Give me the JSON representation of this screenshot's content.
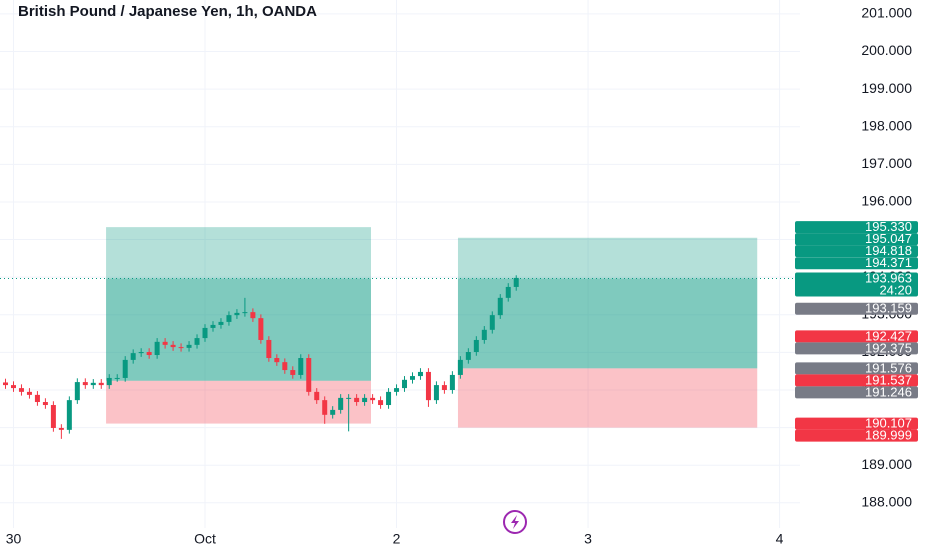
{
  "chart_data": {
    "type": "candlestick",
    "title": "British Pound / Japanese Yen, 1h, OANDA",
    "x": [
      -25,
      -24,
      -23,
      -22,
      -21,
      -20,
      -19,
      -18,
      -17,
      -16,
      -15,
      -14,
      -13,
      -12,
      -11,
      -10,
      -9,
      -8,
      -7,
      -6,
      -5,
      -4,
      -3,
      -2,
      -1,
      0,
      1,
      2,
      3,
      4,
      5,
      6,
      7,
      8,
      9,
      10,
      11,
      12,
      13,
      14,
      15,
      16,
      17,
      18,
      19,
      20,
      21,
      22,
      23,
      24,
      25,
      26,
      27,
      28,
      29,
      30,
      31,
      32,
      33,
      34,
      35,
      36,
      37,
      38,
      39
    ],
    "open": [
      191.2,
      191.13,
      191.05,
      190.95,
      190.87,
      190.68,
      190.6,
      189.99,
      189.94,
      190.73,
      191.21,
      191.13,
      191.19,
      191.13,
      191.32,
      191.32,
      191.8,
      191.98,
      192.01,
      191.93,
      192.28,
      192.2,
      192.14,
      192.12,
      192.2,
      192.38,
      192.65,
      192.73,
      192.81,
      192.99,
      193.05,
      193.07,
      192.91,
      192.33,
      191.85,
      191.74,
      191.53,
      191.4,
      191.85,
      190.95,
      190.73,
      190.34,
      190.47,
      190.79,
      190.79,
      190.68,
      190.79,
      190.73,
      190.6,
      190.95,
      191.05,
      191.27,
      191.37,
      191.48,
      190.73,
      191.13,
      191.0,
      191.4,
      191.8,
      192.01,
      192.33,
      192.6,
      192.99,
      193.45,
      193.74
    ],
    "high": [
      191.3,
      191.23,
      191.15,
      191.05,
      190.97,
      190.78,
      190.7,
      190.09,
      190.83,
      191.31,
      191.31,
      191.29,
      191.29,
      191.42,
      191.42,
      191.9,
      192.08,
      192.11,
      192.11,
      192.38,
      192.38,
      192.3,
      192.24,
      192.3,
      192.48,
      192.75,
      192.83,
      192.91,
      193.09,
      193.15,
      193.45,
      193.17,
      193.01,
      192.43,
      191.95,
      191.84,
      191.63,
      191.95,
      191.95,
      191.05,
      190.83,
      190.57,
      190.89,
      190.89,
      190.89,
      190.89,
      190.89,
      190.83,
      191.05,
      191.15,
      191.37,
      191.47,
      191.58,
      191.58,
      191.23,
      191.23,
      191.5,
      191.9,
      192.11,
      192.43,
      192.7,
      193.09,
      193.55,
      193.84,
      194.05
    ],
    "low": [
      191.03,
      190.95,
      190.85,
      190.77,
      190.58,
      190.5,
      189.89,
      189.7,
      189.84,
      190.63,
      191.03,
      191.03,
      191.03,
      191.03,
      191.22,
      191.22,
      191.7,
      191.88,
      191.83,
      191.83,
      192.1,
      192.04,
      192.02,
      192.02,
      192.1,
      192.28,
      192.55,
      192.63,
      192.71,
      192.89,
      192.95,
      192.81,
      192.23,
      191.75,
      191.64,
      191.43,
      191.3,
      191.3,
      190.85,
      190.63,
      190.1,
      190.24,
      190.37,
      189.9,
      190.58,
      190.58,
      190.63,
      190.5,
      190.5,
      190.85,
      190.95,
      191.17,
      191.27,
      190.55,
      190.63,
      190.9,
      190.9,
      191.3,
      191.7,
      191.91,
      192.23,
      192.5,
      192.89,
      193.35,
      193.64
    ],
    "close": [
      191.13,
      191.05,
      190.95,
      190.87,
      190.68,
      190.6,
      189.99,
      189.94,
      190.73,
      191.21,
      191.13,
      191.19,
      191.13,
      191.32,
      191.32,
      191.8,
      191.98,
      192.01,
      191.93,
      192.28,
      192.2,
      192.14,
      192.12,
      192.2,
      192.38,
      192.65,
      192.73,
      192.81,
      192.99,
      193.05,
      193.07,
      192.91,
      192.33,
      191.85,
      191.74,
      191.53,
      191.4,
      191.85,
      190.95,
      190.73,
      190.34,
      190.47,
      190.79,
      190.79,
      190.68,
      190.79,
      190.73,
      190.6,
      190.95,
      191.05,
      191.27,
      191.37,
      191.48,
      190.73,
      191.13,
      191.0,
      191.4,
      191.8,
      192.01,
      192.33,
      192.6,
      192.99,
      193.45,
      193.74,
      193.98
    ],
    "up_color": "#089981",
    "down_color": "#f23645",
    "xlim": [
      -25.69,
      74.56
    ],
    "xticks": [
      {
        "value": -24,
        "label": "30"
      },
      {
        "value": 0,
        "label": "Oct"
      },
      {
        "value": 24,
        "label": "2"
      },
      {
        "value": 48,
        "label": "3"
      },
      {
        "value": 72,
        "label": "4"
      }
    ],
    "ylim": [
      187.33,
      201.37
    ],
    "yticks": [
      {
        "value": 188,
        "label": "188.000"
      },
      {
        "value": 189,
        "label": "189.000"
      },
      {
        "value": 190,
        "label": "190.000"
      },
      {
        "value": 191,
        "label": "191.000"
      },
      {
        "value": 192,
        "label": "192.000"
      },
      {
        "value": 193,
        "label": "193.000"
      },
      {
        "value": 194,
        "label": "194.000"
      },
      {
        "value": 195,
        "label": "195.000"
      },
      {
        "value": 196,
        "label": "196.000"
      },
      {
        "value": 197,
        "label": "197.000"
      },
      {
        "value": 198,
        "label": "198.000"
      },
      {
        "value": 199,
        "label": "199.000"
      },
      {
        "value": 200,
        "label": "200.000"
      },
      {
        "value": 201,
        "label": "201.000"
      }
    ],
    "grid": true,
    "positions": [
      {
        "x": [
          -12.4,
          20.8
        ],
        "entry": 191.246,
        "target": 195.33,
        "stop": 190.107
      },
      {
        "x": [
          31.7,
          69.2
        ],
        "entry": 191.576,
        "target": 195.047,
        "stop": 189.999
      }
    ],
    "last_price": {
      "value": 193.963,
      "label": "193.963",
      "countdown": "24:20",
      "color": "#089981"
    },
    "price_labels": [
      {
        "value": 195.33,
        "label": "195.330",
        "color": "#089981"
      },
      {
        "value": 195.047,
        "label": "195.047",
        "color": "#089981"
      },
      {
        "value": 194.818,
        "label": "194.818",
        "color": "#089981"
      },
      {
        "value": 194.371,
        "label": "194.371",
        "color": "#089981"
      },
      {
        "value": 193.159,
        "label": "193.159",
        "color": "#787b86"
      },
      {
        "value": 192.427,
        "label": "192.427",
        "color": "#f23645"
      },
      {
        "value": 192.375,
        "label": "192.375",
        "color": "#787b86"
      },
      {
        "value": 191.576,
        "label": "191.576",
        "color": "#787b86"
      },
      {
        "value": 191.537,
        "label": "191.537",
        "color": "#f23645"
      },
      {
        "value": 191.246,
        "label": "191.246",
        "color": "#787b86"
      },
      {
        "value": 190.107,
        "label": "190.107",
        "color": "#f23645"
      },
      {
        "value": 189.999,
        "label": "189.999",
        "color": "#f23645"
      }
    ]
  }
}
